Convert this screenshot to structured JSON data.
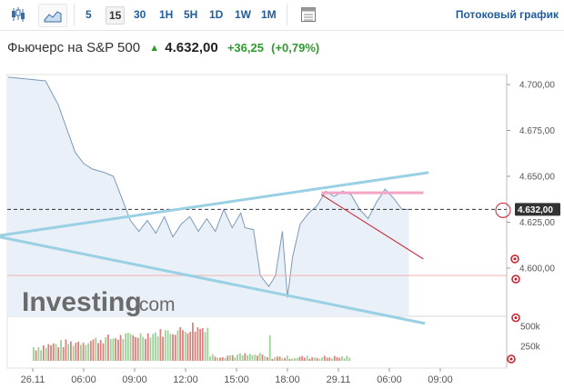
{
  "toolbar": {
    "chart_type_icons": [
      "candlestick-icon",
      "area-chart-icon"
    ],
    "intervals": [
      "5",
      "15",
      "30",
      "1H",
      "5H",
      "1D",
      "1W",
      "1M"
    ],
    "active_interval": "15",
    "table_icon": "table-icon",
    "stream_link": "Потоковый график"
  },
  "quote": {
    "name": "Фьючерс на S&P 500",
    "direction_icon": "up-arrow-icon",
    "last": "4.632,00",
    "change": "+36,25",
    "change_pct": "(+0,79%)"
  },
  "watermark": {
    "brand": "Investing",
    "suffix": ".com"
  },
  "colors": {
    "area_fill": "#e9f0f8",
    "line": "#7b9bb8",
    "trendline": "#99d0e3",
    "resistance": "#f2a4c4",
    "red_line": "#cc1b2a",
    "volume_up": "#9fd09a",
    "volume_down": "#d9837c",
    "positive": "#2e9b2e"
  },
  "chart_data": {
    "type": "area",
    "title": "Фьючерс на S&P 500",
    "x_labels": [
      "26.11",
      "06:00",
      "09:00",
      "12:00",
      "15:00",
      "18:00",
      "29.11",
      "06:00",
      "09:00"
    ],
    "x": [
      0,
      6,
      12,
      18,
      24,
      30,
      36,
      42,
      48
    ],
    "y_ticks": [
      "4.700,00",
      "4.675,00",
      "4.650,00",
      "4.625,00",
      "4.600,00"
    ],
    "ylim": [
      4580,
      4710
    ],
    "last_value": "4.632,00",
    "price_series": [
      [
        0,
        4704
      ],
      [
        1.5,
        4702
      ],
      [
        3,
        4689
      ],
      [
        4,
        4676
      ],
      [
        5,
        4663
      ],
      [
        6,
        4657
      ],
      [
        7,
        4654
      ],
      [
        8.5,
        4652
      ],
      [
        9.5,
        4650
      ],
      [
        10.5,
        4638
      ],
      [
        11.5,
        4626
      ],
      [
        12.5,
        4620
      ],
      [
        13.5,
        4626
      ],
      [
        14.5,
        4619
      ],
      [
        15.5,
        4628
      ],
      [
        16.5,
        4617
      ],
      [
        17.5,
        4624
      ],
      [
        18.5,
        4628
      ],
      [
        19.5,
        4620
      ],
      [
        20.5,
        4627
      ],
      [
        21.5,
        4620
      ],
      [
        22.5,
        4632
      ],
      [
        23.5,
        4622
      ],
      [
        24.5,
        4630
      ],
      [
        25,
        4622
      ],
      [
        26,
        4621
      ],
      [
        26.8,
        4596
      ],
      [
        27.8,
        4590
      ],
      [
        28.6,
        4596
      ],
      [
        29.4,
        4620
      ],
      [
        30,
        4584
      ],
      [
        30.6,
        4606
      ],
      [
        31.5,
        4624
      ],
      [
        32.5,
        4630
      ],
      [
        33.5,
        4634
      ],
      [
        34.5,
        4642
      ],
      [
        35.5,
        4639
      ],
      [
        36.5,
        4642
      ],
      [
        37.5,
        4640
      ],
      [
        38.5,
        4632
      ],
      [
        39.5,
        4627
      ],
      [
        40.5,
        4636
      ],
      [
        41.5,
        4643
      ],
      [
        42.5,
        4638
      ],
      [
        43.5,
        4632
      ],
      [
        44.3,
        4632
      ]
    ],
    "reference_lines": [
      {
        "kind": "dashed",
        "value": 4632
      },
      {
        "kind": "horizontal",
        "value": 4596
      }
    ],
    "trendlines": [
      {
        "kind": "upper-support",
        "from": [
          -5,
          4617
        ],
        "to": [
          46.5,
          4652
        ]
      },
      {
        "kind": "lower-support",
        "from": [
          -5,
          4618
        ],
        "to": [
          46.5,
          4570
        ]
      },
      {
        "kind": "resistance",
        "from": [
          34,
          4641
        ],
        "to": [
          46,
          4641
        ]
      },
      {
        "kind": "red-trend",
        "from": [
          34,
          4640
        ],
        "to": [
          46,
          4605
        ]
      }
    ],
    "volume": {
      "y_ticks": [
        "500k",
        "250k"
      ],
      "ylim": [
        0,
        600000
      ]
    }
  }
}
